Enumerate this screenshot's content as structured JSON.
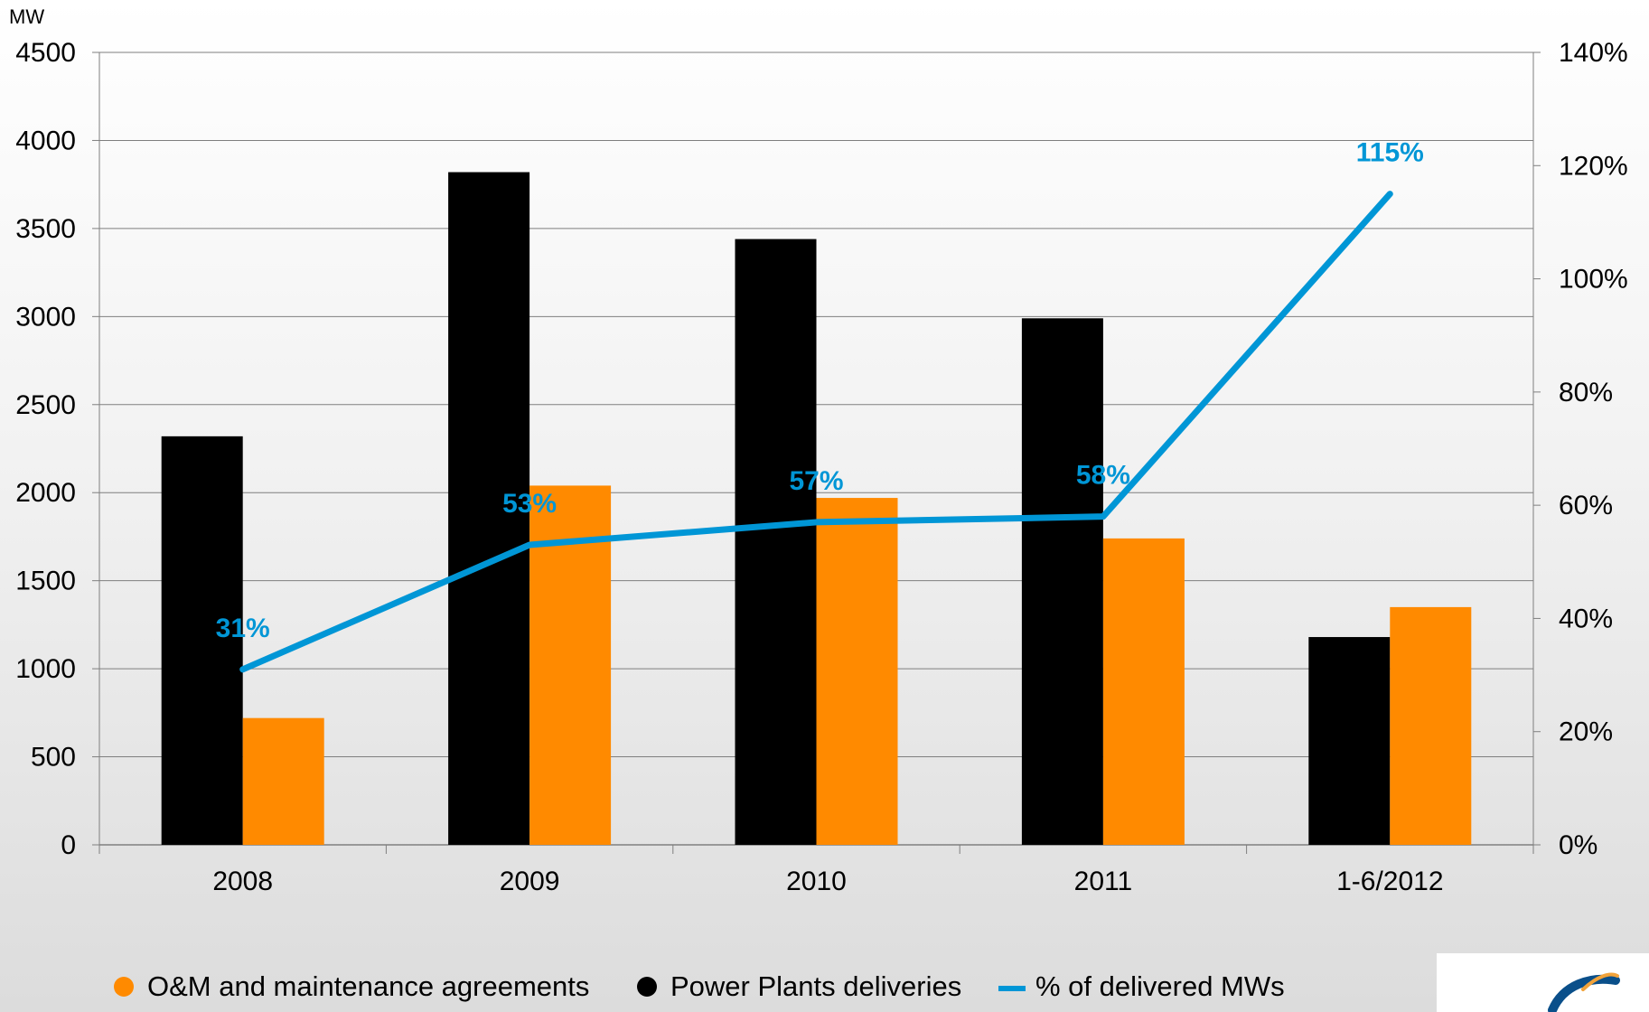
{
  "chart_data": {
    "type": "bar",
    "categories": [
      "2008",
      "2009",
      "2010",
      "2011",
      "1-6/2012"
    ],
    "series": [
      {
        "name": "Power Plants deliveries",
        "type": "bar",
        "axis": "left",
        "color": "#000000",
        "values": [
          2320,
          3820,
          3440,
          2990,
          1180
        ]
      },
      {
        "name": "O&M and maintenance agreements",
        "type": "bar",
        "axis": "left",
        "color": "#ff8a00",
        "values": [
          720,
          2040,
          1970,
          1740,
          1350
        ]
      },
      {
        "name": "% of delivered MWs",
        "type": "line",
        "axis": "right",
        "color": "#0096d6",
        "values": [
          31,
          53,
          57,
          58,
          115
        ],
        "labels": [
          "31%",
          "53%",
          "57%",
          "58%",
          "115%"
        ]
      }
    ],
    "y_left": {
      "label": "MW",
      "min": 0,
      "max": 4500,
      "ticks": [
        "0",
        "500",
        "1000",
        "1500",
        "2000",
        "2500",
        "3000",
        "3500",
        "4000",
        "4500"
      ]
    },
    "y_right": {
      "min": 0,
      "max": 140,
      "ticks": [
        "0%",
        "20%",
        "40%",
        "60%",
        "80%",
        "100%",
        "120%",
        "140%"
      ]
    },
    "grid": true,
    "legend_position": "bottom",
    "legend": [
      {
        "label": "O&M and maintenance agreements",
        "marker": "circle",
        "color": "#ff8a00"
      },
      {
        "label": "Power Plants deliveries",
        "marker": "circle",
        "color": "#000000"
      },
      {
        "label": "% of delivered MWs",
        "marker": "line",
        "color": "#0096d6"
      }
    ]
  },
  "logo": {
    "icon": "company-logo-icon"
  }
}
